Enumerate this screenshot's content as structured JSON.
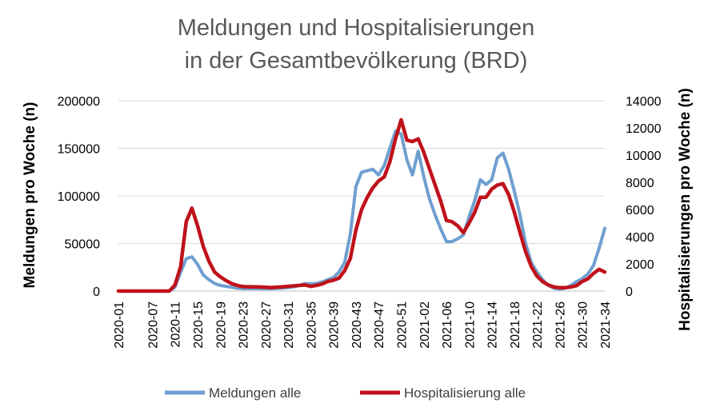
{
  "chart_data": {
    "type": "line",
    "title_lines": [
      "Meldungen und Hospitalisierungen",
      "in der Gesamtbevölkerung (BRD)"
    ],
    "ylabel_left": "Meldungen pro Woche (n)",
    "ylabel_right": "Hospitalisierungen pro Woche (n)",
    "ylim_left": [
      0,
      200000
    ],
    "ylim_right": [
      0,
      14000
    ],
    "yticks_left": [
      "0",
      "50000",
      "100000",
      "150000",
      "200000"
    ],
    "yticks_right": [
      "0",
      "2000",
      "4000",
      "6000",
      "8000",
      "10000",
      "12000",
      "14000"
    ],
    "grid": true,
    "legend_position": "bottom",
    "x_tick_labels": [
      "2020-01",
      "2020-07",
      "2020-11",
      "2020-15",
      "2020-19",
      "2020-23",
      "2020-27",
      "2020-31",
      "2020-35",
      "2020-39",
      "2020-43",
      "2020-47",
      "2020-51",
      "2021-02",
      "2021-06",
      "2021-10",
      "2021-14",
      "2021-18",
      "2021-22",
      "2021-26",
      "2021-30",
      "2021-34"
    ],
    "x_tick_weeks": [
      1,
      7,
      11,
      15,
      19,
      23,
      27,
      31,
      35,
      39,
      43,
      47,
      51,
      55,
      59,
      63,
      67,
      71,
      75,
      79,
      83,
      87
    ],
    "week_range": [
      1,
      87
    ],
    "series": [
      {
        "name": "Meldungen  alle",
        "axis": "left",
        "color": "#6f9fd0",
        "points": [
          [
            1,
            0
          ],
          [
            4,
            0
          ],
          [
            8,
            0
          ],
          [
            10,
            0
          ],
          [
            11,
            4000
          ],
          [
            12,
            20000
          ],
          [
            13,
            34000
          ],
          [
            14,
            36000
          ],
          [
            15,
            28000
          ],
          [
            16,
            17000
          ],
          [
            17,
            12000
          ],
          [
            18,
            8000
          ],
          [
            19,
            6000
          ],
          [
            20,
            5000
          ],
          [
            21,
            4000
          ],
          [
            22,
            3000
          ],
          [
            23,
            2500
          ],
          [
            24,
            2500
          ],
          [
            26,
            2500
          ],
          [
            28,
            2500
          ],
          [
            30,
            3000
          ],
          [
            32,
            4500
          ],
          [
            33,
            6000
          ],
          [
            34,
            8000
          ],
          [
            35,
            7500
          ],
          [
            36,
            8000
          ],
          [
            37,
            9500
          ],
          [
            38,
            12000
          ],
          [
            39,
            14000
          ],
          [
            40,
            20000
          ],
          [
            41,
            30000
          ],
          [
            42,
            60000
          ],
          [
            43,
            110000
          ],
          [
            44,
            125000
          ],
          [
            46,
            128000
          ],
          [
            47,
            122000
          ],
          [
            48,
            132000
          ],
          [
            49,
            150000
          ],
          [
            50,
            168000
          ],
          [
            51,
            165000
          ],
          [
            52,
            138000
          ],
          [
            53,
            122000
          ],
          [
            54,
            147000
          ],
          [
            55,
            120000
          ],
          [
            56,
            97000
          ],
          [
            57,
            80000
          ],
          [
            58,
            65000
          ],
          [
            59,
            52000
          ],
          [
            60,
            52000
          ],
          [
            61,
            55000
          ],
          [
            62,
            59000
          ],
          [
            63,
            78000
          ],
          [
            64,
            95000
          ],
          [
            65,
            117000
          ],
          [
            66,
            112000
          ],
          [
            67,
            117000
          ],
          [
            68,
            140000
          ],
          [
            69,
            145000
          ],
          [
            70,
            128000
          ],
          [
            71,
            105000
          ],
          [
            72,
            80000
          ],
          [
            73,
            50000
          ],
          [
            74,
            30000
          ],
          [
            75,
            20000
          ],
          [
            76,
            12000
          ],
          [
            77,
            6000
          ],
          [
            78,
            3000
          ],
          [
            79,
            2000
          ],
          [
            80,
            3000
          ],
          [
            81,
            6000
          ],
          [
            82,
            10000
          ],
          [
            83,
            13000
          ],
          [
            84,
            18000
          ],
          [
            85,
            27000
          ],
          [
            86,
            45000
          ],
          [
            87,
            66000
          ]
        ]
      },
      {
        "name": "Hospitalisierung alle",
        "axis": "right",
        "color": "#c0121b",
        "points": [
          [
            1,
            0
          ],
          [
            4,
            0
          ],
          [
            8,
            0
          ],
          [
            10,
            0
          ],
          [
            11,
            450
          ],
          [
            12,
            1800
          ],
          [
            13,
            5100
          ],
          [
            14,
            6100
          ],
          [
            15,
            4800
          ],
          [
            16,
            3300
          ],
          [
            17,
            2200
          ],
          [
            18,
            1400
          ],
          [
            19,
            1050
          ],
          [
            20,
            780
          ],
          [
            21,
            550
          ],
          [
            22,
            420
          ],
          [
            23,
            330
          ],
          [
            24,
            320
          ],
          [
            26,
            300
          ],
          [
            28,
            260
          ],
          [
            30,
            310
          ],
          [
            32,
            380
          ],
          [
            34,
            450
          ],
          [
            35,
            350
          ],
          [
            36,
            420
          ],
          [
            37,
            520
          ],
          [
            38,
            700
          ],
          [
            39,
            800
          ],
          [
            40,
            950
          ],
          [
            41,
            1500
          ],
          [
            42,
            2400
          ],
          [
            43,
            4500
          ],
          [
            44,
            6000
          ],
          [
            45,
            6900
          ],
          [
            46,
            7600
          ],
          [
            47,
            8100
          ],
          [
            48,
            8400
          ],
          [
            49,
            9500
          ],
          [
            50,
            11200
          ],
          [
            51,
            12600
          ],
          [
            52,
            11100
          ],
          [
            53,
            11000
          ],
          [
            54,
            11200
          ],
          [
            55,
            10200
          ],
          [
            56,
            9000
          ],
          [
            57,
            7800
          ],
          [
            58,
            6600
          ],
          [
            59,
            5200
          ],
          [
            60,
            5100
          ],
          [
            61,
            4800
          ],
          [
            62,
            4300
          ],
          [
            63,
            5000
          ],
          [
            64,
            5800
          ],
          [
            65,
            6900
          ],
          [
            66,
            6900
          ],
          [
            67,
            7500
          ],
          [
            68,
            7800
          ],
          [
            69,
            7900
          ],
          [
            70,
            7100
          ],
          [
            71,
            5800
          ],
          [
            72,
            4300
          ],
          [
            73,
            2900
          ],
          [
            74,
            1800
          ],
          [
            75,
            1100
          ],
          [
            76,
            700
          ],
          [
            77,
            450
          ],
          [
            78,
            300
          ],
          [
            79,
            250
          ],
          [
            80,
            250
          ],
          [
            81,
            300
          ],
          [
            82,
            400
          ],
          [
            83,
            700
          ],
          [
            84,
            900
          ],
          [
            85,
            1300
          ],
          [
            86,
            1600
          ],
          [
            87,
            1400
          ]
        ]
      }
    ]
  }
}
